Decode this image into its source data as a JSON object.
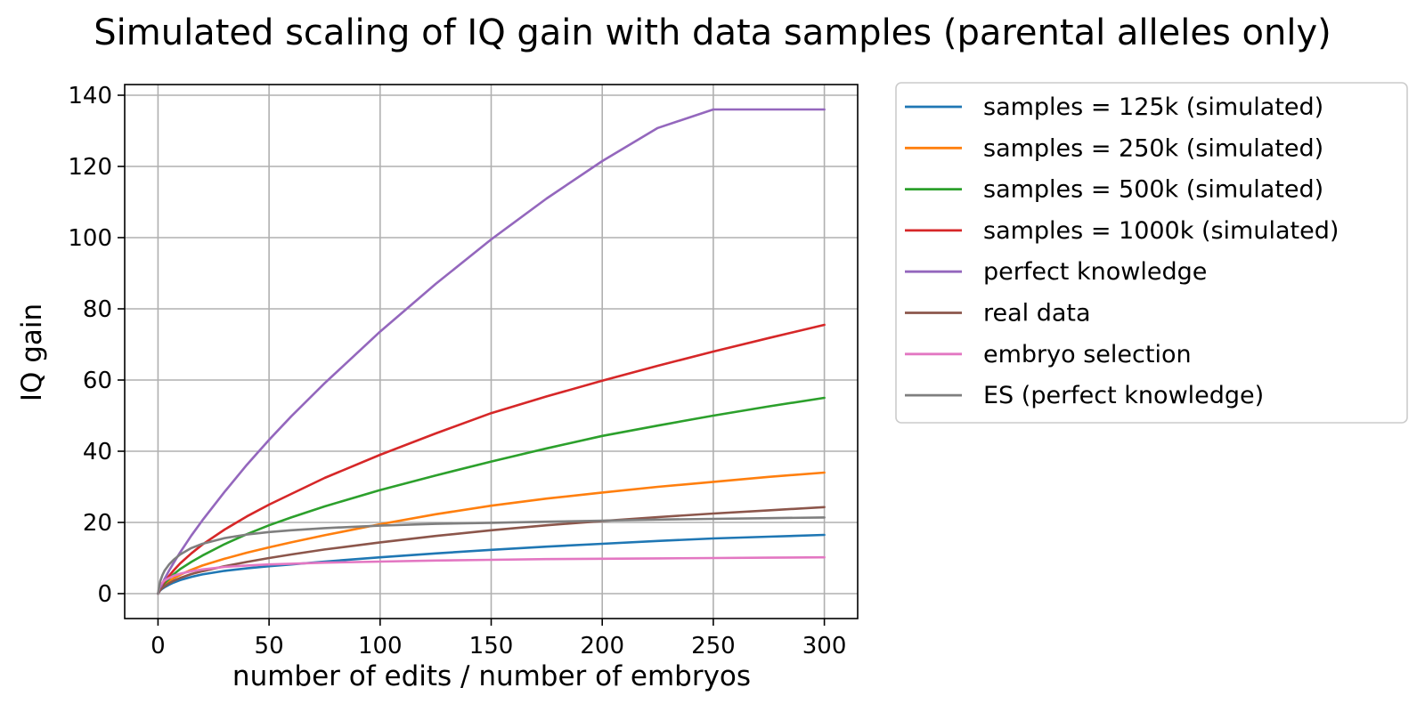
{
  "chart_data": {
    "type": "line",
    "title": "Simulated scaling of IQ gain with data samples (parental alleles only)",
    "xlabel": "number of edits / number of embryos",
    "ylabel": "IQ gain",
    "xlim": [
      -15,
      315
    ],
    "ylim": [
      -7,
      143
    ],
    "xticks": [
      0,
      50,
      100,
      150,
      200,
      250,
      300
    ],
    "yticks": [
      0,
      20,
      40,
      60,
      80,
      100,
      120,
      140
    ],
    "grid": true,
    "legend_position": "outside-right-top",
    "x": [
      0,
      1,
      2,
      3,
      5,
      7,
      10,
      15,
      20,
      30,
      40,
      50,
      60,
      75,
      100,
      125,
      150,
      175,
      200,
      225,
      250,
      275,
      300
    ],
    "series": [
      {
        "name": "samples = 125k (simulated)",
        "color": "#1f77b4",
        "values": [
          0,
          0.9,
          1.4,
          1.8,
          2.5,
          3.1,
          3.8,
          4.7,
          5.4,
          6.4,
          7.1,
          7.7,
          8.2,
          9.0,
          10.2,
          11.3,
          12.3,
          13.2,
          14.0,
          14.8,
          15.5,
          16.0,
          16.5
        ]
      },
      {
        "name": "samples = 250k (simulated)",
        "color": "#ff7f0e",
        "values": [
          0,
          1.2,
          1.9,
          2.5,
          3.5,
          4.3,
          5.3,
          6.7,
          7.9,
          9.8,
          11.5,
          13.0,
          14.4,
          16.4,
          19.5,
          22.3,
          24.7,
          26.7,
          28.4,
          30.0,
          31.4,
          32.8,
          34.0
        ]
      },
      {
        "name": "samples = 500k (simulated)",
        "color": "#2ca02c",
        "values": [
          0,
          1.3,
          2.2,
          3.0,
          4.2,
          5.4,
          6.9,
          8.9,
          10.7,
          13.9,
          16.7,
          19.2,
          21.4,
          24.5,
          29.1,
          33.2,
          37.1,
          40.8,
          44.3,
          47.2,
          50.0,
          52.6,
          55.0
        ]
      },
      {
        "name": "samples = 1000k (simulated)",
        "color": "#d62728",
        "values": [
          0,
          1.5,
          2.5,
          3.5,
          5.0,
          6.5,
          8.5,
          11.3,
          13.8,
          18.0,
          21.7,
          25.0,
          28.0,
          32.5,
          39.0,
          45.0,
          50.7,
          55.4,
          59.8,
          64.0,
          68.0,
          71.8,
          75.5
        ]
      },
      {
        "name": "perfect knowledge",
        "color": "#9467bd",
        "values": [
          0,
          1.5,
          2.9,
          4.2,
          6.5,
          8.6,
          11.6,
          16.3,
          20.6,
          28.6,
          36.2,
          43.2,
          49.8,
          59.1,
          73.6,
          87.0,
          99.5,
          111.0,
          121.5,
          130.8,
          136.0,
          136.0,
          136.0
        ]
      },
      {
        "name": "real data",
        "color": "#8c564b",
        "values": [
          0,
          1.0,
          1.6,
          2.1,
          2.9,
          3.6,
          4.4,
          5.5,
          6.3,
          7.7,
          8.9,
          10.0,
          11.0,
          12.4,
          14.4,
          16.2,
          17.8,
          19.2,
          20.4,
          21.5,
          22.5,
          23.4,
          24.3
        ]
      },
      {
        "name": "embryo selection",
        "color": "#e377c2",
        "values": [
          0,
          2.4,
          3.1,
          3.7,
          4.4,
          5.0,
          5.6,
          6.3,
          6.8,
          7.5,
          7.9,
          8.2,
          8.4,
          8.7,
          9.0,
          9.3,
          9.5,
          9.7,
          9.8,
          9.9,
          10.0,
          10.1,
          10.2
        ]
      },
      {
        "name": "ES (perfect knowledge)",
        "color": "#7f7f7f",
        "values": [
          0,
          3.5,
          5.2,
          6.5,
          8.2,
          9.5,
          11.0,
          12.8,
          14.0,
          15.6,
          16.6,
          17.3,
          17.8,
          18.4,
          19.1,
          19.6,
          19.9,
          20.2,
          20.5,
          20.8,
          21.0,
          21.2,
          21.4
        ]
      }
    ]
  }
}
